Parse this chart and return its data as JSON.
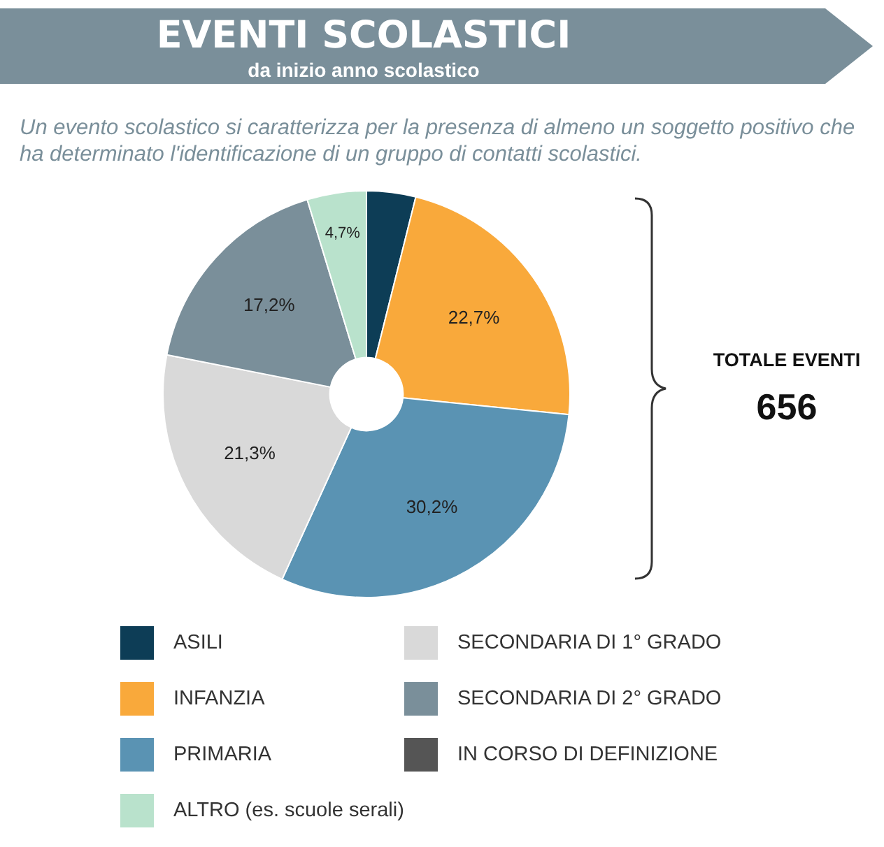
{
  "chart_data": {
    "type": "donut",
    "title": "EVENTI SCOLASTICI",
    "subtitle": "da inizio anno scolastico",
    "categories": [
      "ASILI",
      "INFANZIA",
      "PRIMARIA",
      "SECONDARIA DI 1° GRADO",
      "SECONDARIA DI 2° GRADO",
      "IN CORSO DI DEFINIZIONE",
      "ALTRO (es. scuole serali)"
    ],
    "values": [
      3.9,
      22.7,
      30.2,
      21.3,
      17.2,
      0,
      4.7
    ],
    "colors": [
      "#0d3d56",
      "#f9a93b",
      "#5a93b3",
      "#d9d9d9",
      "#7a8f9a",
      "#555555",
      "#b9e2cc"
    ],
    "value_labels": [
      null,
      "22,7%",
      "30,2%",
      "21,3%",
      "17,2%",
      null,
      "4,7%"
    ],
    "legend": "bottom",
    "annotations": [
      "Un evento scolastico si caratterizza per la presenza di almeno un soggetto positivo che ha determinato l'identificazione di un gruppo di contatti scolastici.",
      "TOTALE EVENTI",
      "656"
    ]
  }
}
